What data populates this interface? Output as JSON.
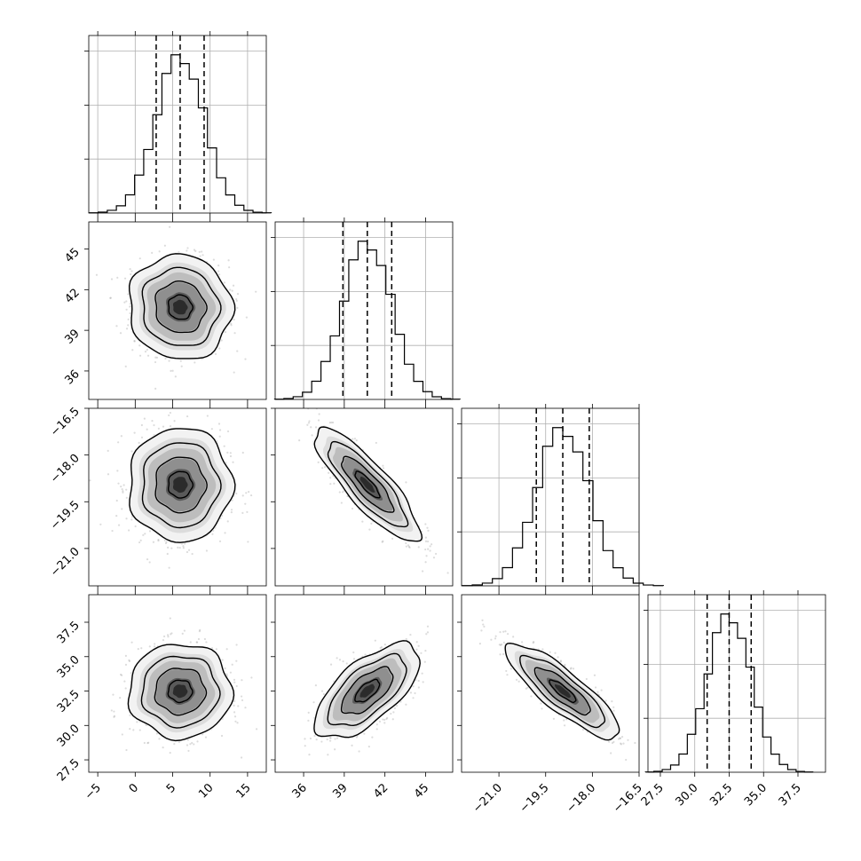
{
  "chart_data": {
    "type": "corner",
    "parameters": [
      {
        "index": 0,
        "median": 6.0,
        "sigma": 3.2,
        "quantiles": [
          2.8,
          6.0,
          9.2
        ],
        "range": [
          -6.2,
          17.5
        ],
        "ticks": [
          -5,
          0,
          5,
          10,
          15
        ],
        "tick_labels": [
          "−5",
          "0",
          "5",
          "10",
          "15"
        ]
      },
      {
        "index": 1,
        "median": 40.7,
        "sigma": 1.8,
        "quantiles": [
          38.9,
          40.7,
          42.5
        ],
        "range": [
          33.9,
          47.0
        ],
        "ticks": [
          36,
          39,
          42,
          45
        ],
        "tick_labels": [
          "36",
          "39",
          "42",
          "45"
        ]
      },
      {
        "index": 2,
        "median": -18.95,
        "sigma": 0.85,
        "quantiles": [
          -19.8,
          -18.95,
          -18.1
        ],
        "range": [
          -22.2,
          -16.5
        ],
        "ticks": [
          -21.0,
          -19.5,
          -18.0,
          -16.5
        ],
        "tick_labels": [
          "−21.0",
          "−19.5",
          "−18.0",
          "−16.5"
        ]
      },
      {
        "index": 3,
        "median": 32.5,
        "sigma": 1.6,
        "quantiles": [
          30.9,
          32.5,
          34.1
        ],
        "range": [
          26.6,
          39.5
        ],
        "ticks": [
          27.5,
          30.0,
          32.5,
          35.0,
          37.5
        ],
        "tick_labels": [
          "27.5",
          "30.0",
          "32.5",
          "35.0",
          "37.5"
        ]
      }
    ],
    "correlations": [
      {
        "pair": [
          0,
          1
        ],
        "rho": -0.05
      },
      {
        "pair": [
          0,
          2
        ],
        "rho": 0.0
      },
      {
        "pair": [
          0,
          3
        ],
        "rho": 0.0
      },
      {
        "pair": [
          1,
          2
        ],
        "rho": -0.85
      },
      {
        "pair": [
          1,
          3
        ],
        "rho": 0.65
      },
      {
        "pair": [
          2,
          3
        ],
        "rho": -0.85
      }
    ],
    "contour_levels_sigma": [
      0.5,
      1.0,
      1.5,
      2.0
    ],
    "histogram_bins": 20,
    "grid": true
  }
}
